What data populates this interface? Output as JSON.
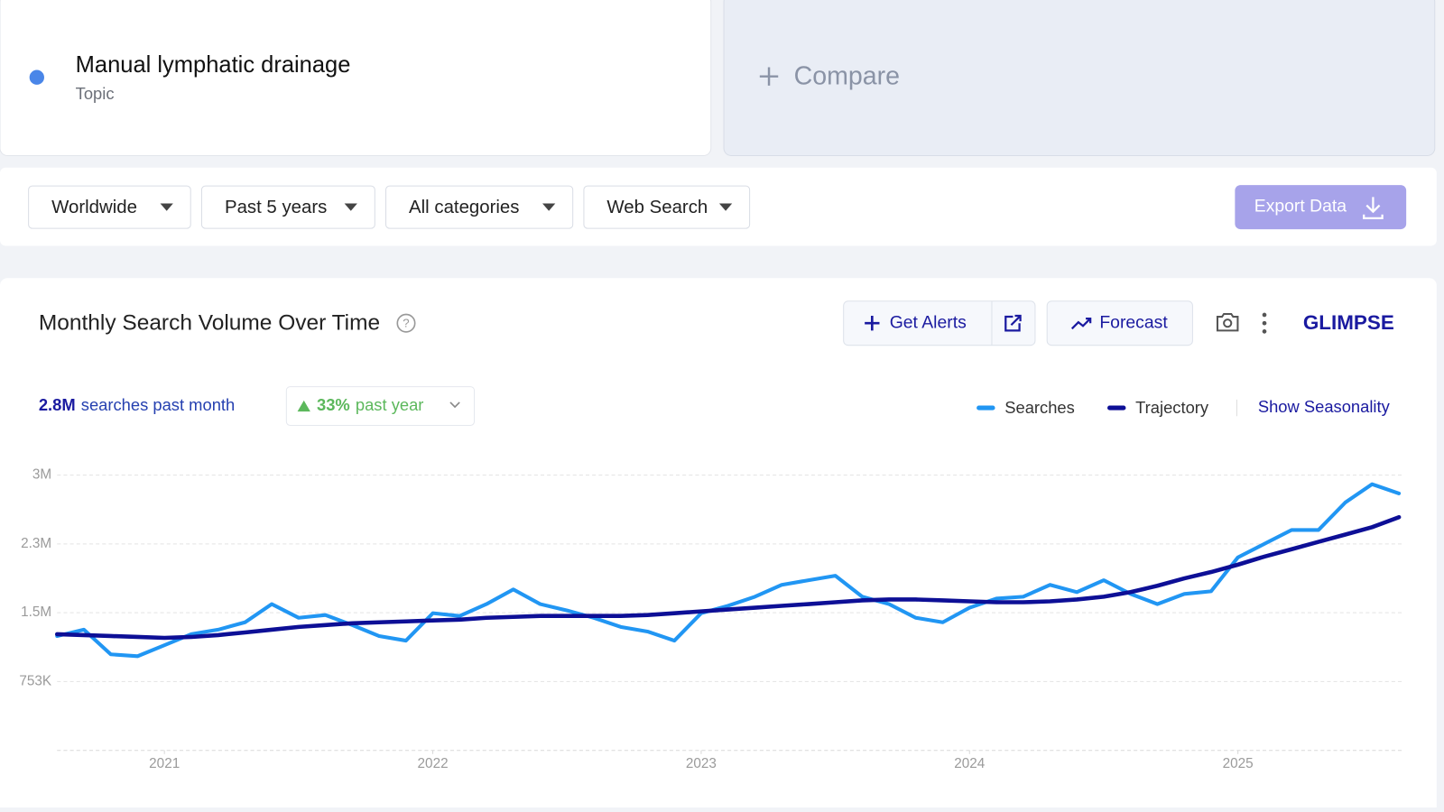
{
  "topic": {
    "title": "Manual lymphatic drainage",
    "subtitle": "Topic"
  },
  "compare": {
    "label": "Compare"
  },
  "filters": [
    "Worldwide",
    "Past 5 years",
    "All categories",
    "Web Search"
  ],
  "export": {
    "label": "Export Data"
  },
  "panel": {
    "title": "Monthly Search Volume Over Time",
    "buttons": [
      "Get Alerts",
      "Forecast"
    ],
    "brand": "GLIMPSE",
    "summary": {
      "volume": "2.8M",
      "volume_text": "searches past month",
      "change": "33%",
      "change_text": "past year"
    },
    "seasonality": "Show Seasonality"
  },
  "chart_data": {
    "type": "line",
    "x": [
      2020.6,
      2020.7,
      2020.8,
      2020.9,
      2021.0,
      2021.1,
      2021.2,
      2021.3,
      2021.4,
      2021.5,
      2021.6,
      2021.7,
      2021.8,
      2021.9,
      2022.0,
      2022.1,
      2022.2,
      2022.3,
      2022.4,
      2022.5,
      2022.6,
      2022.7,
      2022.8,
      2022.9,
      2023.0,
      2023.1,
      2023.2,
      2023.3,
      2023.4,
      2023.5,
      2023.6,
      2023.7,
      2023.8,
      2023.9,
      2024.0,
      2024.1,
      2024.2,
      2024.3,
      2024.4,
      2024.5,
      2024.6,
      2024.7,
      2024.8,
      2024.9,
      2025.0,
      2025.1,
      2025.2,
      2025.3,
      2025.4,
      2025.5,
      2025.6
    ],
    "series": [
      {
        "name": "Searches",
        "color": "#2196f3",
        "values": [
          1250000,
          1320000,
          1050000,
          1030000,
          1150000,
          1270000,
          1320000,
          1400000,
          1600000,
          1450000,
          1480000,
          1370000,
          1250000,
          1200000,
          1500000,
          1470000,
          1600000,
          1760000,
          1600000,
          1530000,
          1450000,
          1350000,
          1300000,
          1200000,
          1500000,
          1580000,
          1680000,
          1810000,
          1860000,
          1910000,
          1680000,
          1600000,
          1450000,
          1400000,
          1560000,
          1660000,
          1680000,
          1810000,
          1730000,
          1860000,
          1710000,
          1600000,
          1710000,
          1740000,
          2110000,
          2260000,
          2410000,
          2410000,
          2710000,
          2910000,
          2810000
        ]
      },
      {
        "name": "Trajectory",
        "color": "#0d0f96",
        "values": [
          1270000,
          1260000,
          1250000,
          1240000,
          1230000,
          1240000,
          1260000,
          1290000,
          1320000,
          1350000,
          1370000,
          1390000,
          1400000,
          1410000,
          1420000,
          1430000,
          1450000,
          1460000,
          1470000,
          1470000,
          1470000,
          1470000,
          1480000,
          1500000,
          1520000,
          1540000,
          1560000,
          1580000,
          1600000,
          1620000,
          1640000,
          1650000,
          1650000,
          1640000,
          1630000,
          1620000,
          1620000,
          1630000,
          1650000,
          1680000,
          1730000,
          1800000,
          1880000,
          1950000,
          2030000,
          2120000,
          2200000,
          2280000,
          2360000,
          2440000,
          2550000
        ]
      }
    ],
    "xlim": [
      2020.6,
      2025.61
    ],
    "xticks": [
      2021,
      2022,
      2023,
      2024,
      2025
    ],
    "ylim": [
      0,
      3010000
    ],
    "yticks": [
      {
        "value": 752500,
        "label": "753K"
      },
      {
        "value": 1505000,
        "label": "1.5M"
      },
      {
        "value": 2257500,
        "label": "2.3M"
      },
      {
        "value": 3010000,
        "label": "3M"
      }
    ],
    "grid": true
  }
}
